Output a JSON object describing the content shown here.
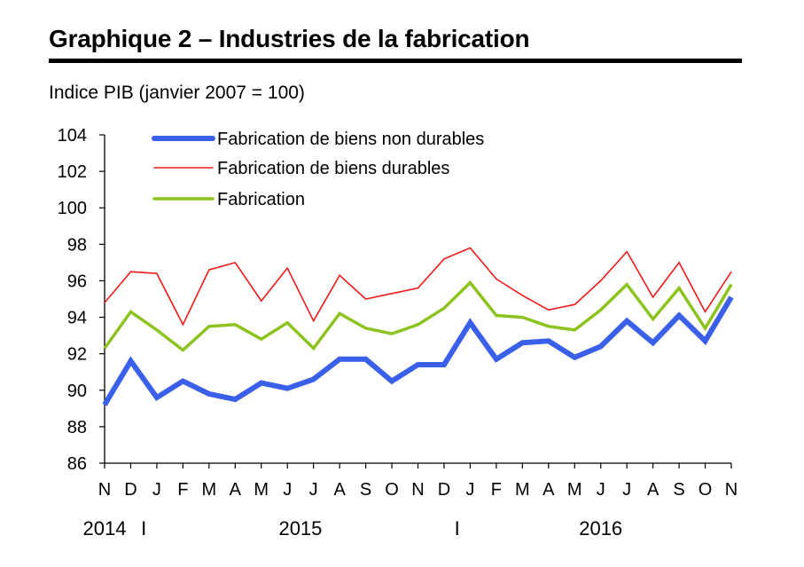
{
  "header": {
    "title": "Graphique 2 – Industries de la fabrication",
    "subtitle": "Indice PIB (janvier 2007 = 100)"
  },
  "chart_data": {
    "type": "line",
    "ylim": [
      86,
      104
    ],
    "yticks": [
      86,
      88,
      90,
      92,
      94,
      96,
      98,
      100,
      102,
      104
    ],
    "categories": [
      "N",
      "D",
      "J",
      "F",
      "M",
      "A",
      "M",
      "J",
      "J",
      "A",
      "S",
      "O",
      "N",
      "D",
      "J",
      "F",
      "M",
      "A",
      "M",
      "J",
      "J",
      "A",
      "S",
      "O",
      "N"
    ],
    "year_labels": [
      {
        "label": "2014",
        "at": 0
      },
      {
        "label": "2015",
        "at": 7.5
      },
      {
        "label": "2016",
        "at": 19
      }
    ],
    "year_separators": [
      1.5,
      13.5
    ],
    "separator_label": "I",
    "grid": false,
    "legend_position": "top-left",
    "series": [
      {
        "name": "Fabrication de biens non durables",
        "color": "#3a5fe8",
        "width": 6,
        "values": [
          89.2,
          91.6,
          89.6,
          90.5,
          89.8,
          89.5,
          90.4,
          90.1,
          90.6,
          91.7,
          91.7,
          90.5,
          91.4,
          91.4,
          93.7,
          91.7,
          92.6,
          92.7,
          91.8,
          92.4,
          93.8,
          92.6,
          94.1,
          92.7,
          95.1
        ]
      },
      {
        "name": "Fabrication de biens durables",
        "color": "#ee1c1c",
        "width": 1.6,
        "values": [
          94.8,
          96.5,
          96.4,
          93.6,
          96.6,
          97.0,
          94.9,
          96.7,
          93.8,
          96.3,
          95.0,
          95.3,
          95.6,
          97.2,
          97.8,
          96.1,
          95.2,
          94.4,
          94.7,
          96.0,
          97.6,
          95.1,
          97.0,
          94.3,
          96.5
        ]
      },
      {
        "name": "Fabrication",
        "color": "#8dc31f",
        "width": 3.5,
        "values": [
          92.3,
          94.3,
          93.3,
          92.2,
          93.5,
          93.6,
          92.8,
          93.7,
          92.3,
          94.2,
          93.4,
          93.1,
          93.6,
          94.5,
          95.9,
          94.1,
          94.0,
          93.5,
          93.3,
          94.4,
          95.8,
          93.9,
          95.6,
          93.4,
          95.8
        ]
      }
    ]
  }
}
